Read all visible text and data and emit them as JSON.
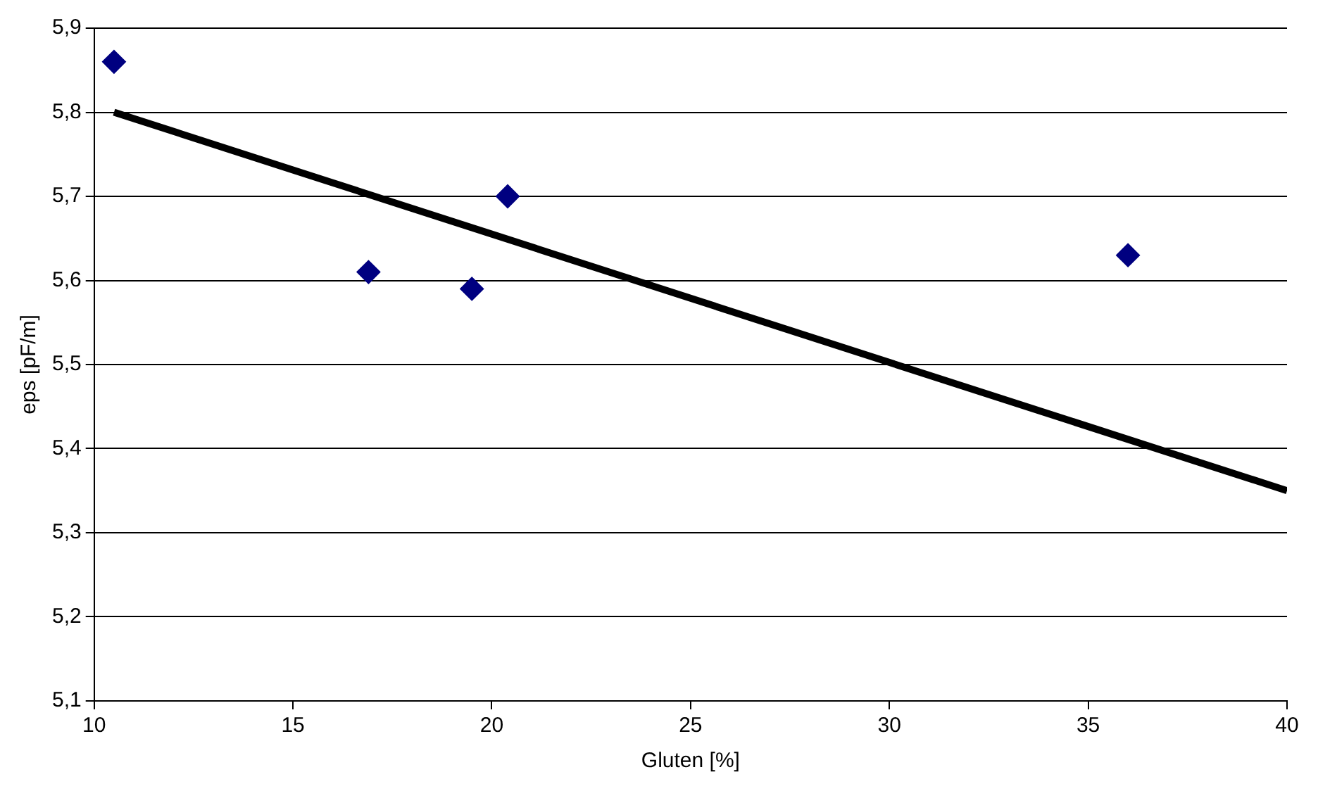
{
  "chart_data": {
    "type": "scatter",
    "xlabel": "Gluten [%]",
    "ylabel": "eps [pF/m]",
    "xlim": [
      10,
      40
    ],
    "xticks": [
      10,
      15,
      20,
      25,
      30,
      35,
      40
    ],
    "ylim": [
      5.1,
      5.9
    ],
    "yticks": [
      {
        "value": 5.1,
        "label": "5,1"
      },
      {
        "value": 5.2,
        "label": "5,2"
      },
      {
        "value": 5.3,
        "label": "5,3"
      },
      {
        "value": 5.4,
        "label": "5,4"
      },
      {
        "value": 5.5,
        "label": "5,5"
      },
      {
        "value": 5.6,
        "label": "5,6"
      },
      {
        "value": 5.7,
        "label": "5,7"
      },
      {
        "value": 5.8,
        "label": "5,8"
      },
      {
        "value": 5.9,
        "label": "5,9"
      }
    ],
    "grid": "y",
    "legend": false,
    "series": [
      {
        "type": "scatter",
        "color": "#000080",
        "marker": "diamond",
        "x": [
          10.5,
          16.9,
          19.5,
          20.4,
          36.0
        ],
        "values": [
          5.86,
          5.61,
          5.59,
          5.7,
          5.63
        ]
      },
      {
        "type": "line",
        "color": "#000000",
        "marker": "none",
        "x": [
          10.5,
          40
        ],
        "values": [
          5.8,
          5.35
        ]
      }
    ]
  }
}
